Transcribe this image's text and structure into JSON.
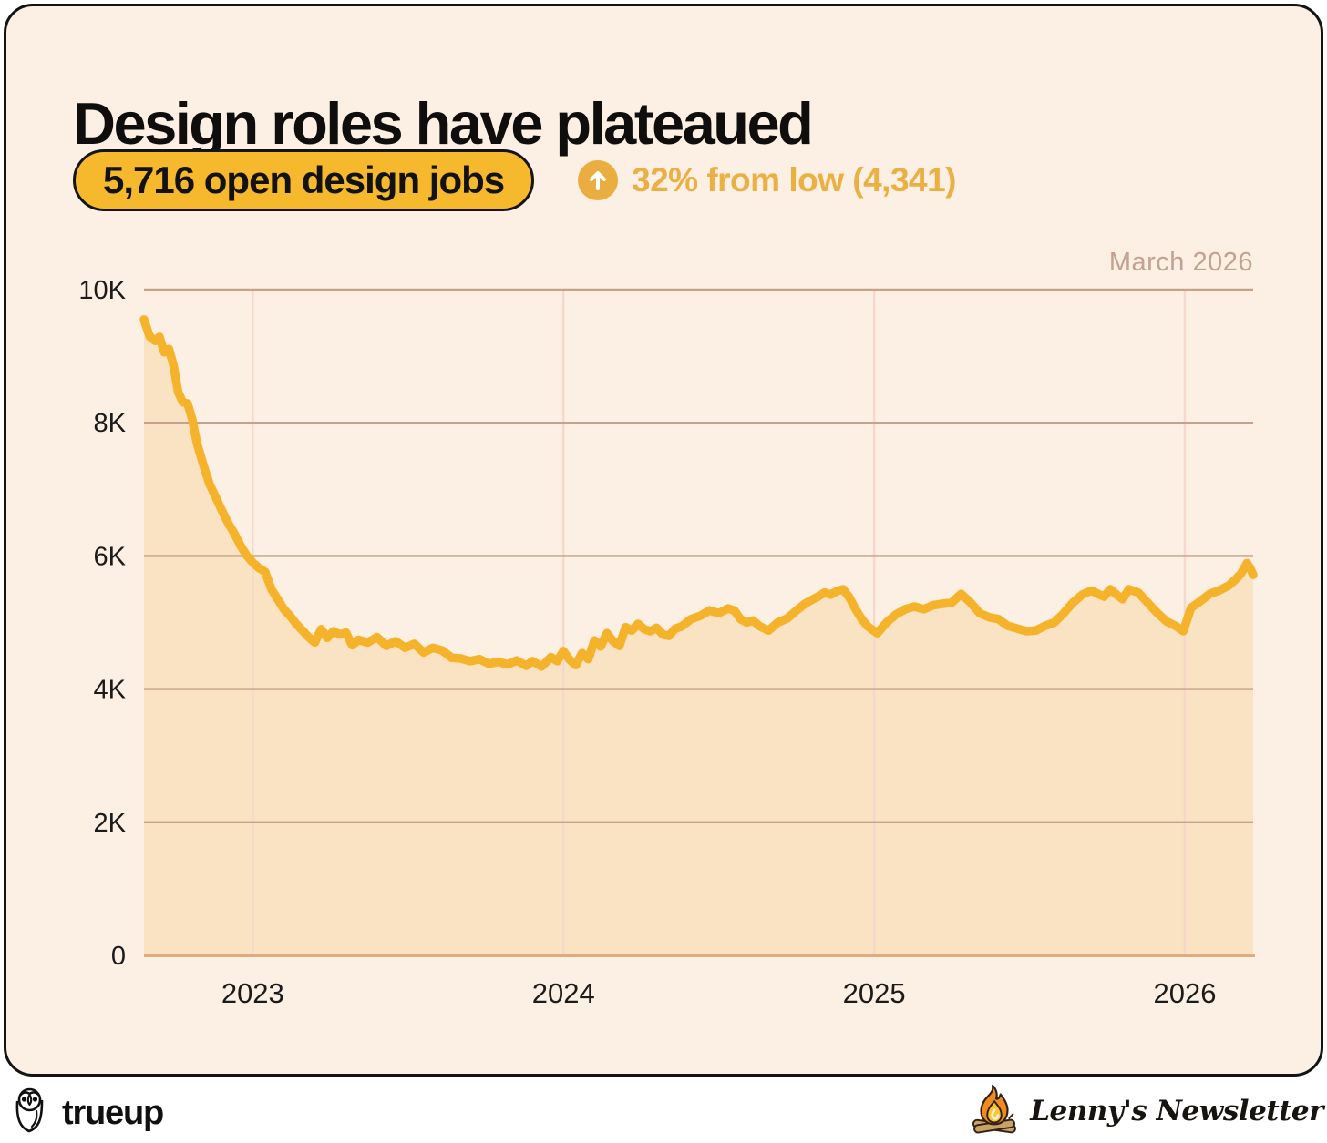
{
  "card": {
    "title": "Design roles have plateaued",
    "badge_label": "5,716 open design jobs",
    "delta_text": "32% from low (4,341)"
  },
  "colors": {
    "card_bg": "#FCEFE3",
    "accent_yellow": "#F4B32B",
    "badge_yellow": "#F6B92D",
    "delta_gold": "#EBB044",
    "area_fill": "#FAE3C2",
    "grid_horizontal": "#C4A28B",
    "grid_vertical": "#F7D7CB",
    "baseline": "#DFAC80",
    "annotation_text": "#C2A290",
    "text_dark": "#121212"
  },
  "chart_data": {
    "type": "area",
    "title": "Design roles have plateaued",
    "ylabel": "Open design jobs",
    "xlabel": "",
    "annotation": "March 2026",
    "latest_value": 5716,
    "low_value": 4341,
    "pct_from_low": "32%",
    "x_range": [
      2022.65,
      2026.22
    ],
    "y_range": [
      0,
      10000
    ],
    "grid": true,
    "legend": "none",
    "y_ticks": [
      {
        "label": "0",
        "value": 0
      },
      {
        "label": "2K",
        "value": 2000
      },
      {
        "label": "4K",
        "value": 4000
      },
      {
        "label": "6K",
        "value": 6000
      },
      {
        "label": "8K",
        "value": 8000
      },
      {
        "label": "10K",
        "value": 10000
      }
    ],
    "x_ticks": [
      {
        "label": "2023",
        "value": 2023
      },
      {
        "label": "2024",
        "value": 2024
      },
      {
        "label": "2025",
        "value": 2025
      },
      {
        "label": "2026",
        "value": 2026
      }
    ],
    "series": [
      {
        "name": "Open design jobs",
        "points": [
          [
            2022.65,
            9550
          ],
          [
            2022.668,
            9300
          ],
          [
            2022.686,
            9230
          ],
          [
            2022.7,
            9290
          ],
          [
            2022.715,
            9060
          ],
          [
            2022.73,
            9110
          ],
          [
            2022.745,
            8860
          ],
          [
            2022.76,
            8460
          ],
          [
            2022.775,
            8310
          ],
          [
            2022.79,
            8290
          ],
          [
            2022.805,
            8060
          ],
          [
            2022.82,
            7700
          ],
          [
            2022.84,
            7380
          ],
          [
            2022.86,
            7090
          ],
          [
            2022.88,
            6890
          ],
          [
            2022.9,
            6690
          ],
          [
            2022.92,
            6500
          ],
          [
            2022.94,
            6340
          ],
          [
            2022.96,
            6160
          ],
          [
            2022.98,
            6010
          ],
          [
            2023.0,
            5900
          ],
          [
            2023.02,
            5820
          ],
          [
            2023.04,
            5760
          ],
          [
            2023.06,
            5500
          ],
          [
            2023.08,
            5350
          ],
          [
            2023.1,
            5200
          ],
          [
            2023.12,
            5100
          ],
          [
            2023.14,
            4980
          ],
          [
            2023.16,
            4880
          ],
          [
            2023.18,
            4780
          ],
          [
            2023.2,
            4700
          ],
          [
            2023.22,
            4900
          ],
          [
            2023.24,
            4770
          ],
          [
            2023.26,
            4870
          ],
          [
            2023.28,
            4820
          ],
          [
            2023.3,
            4850
          ],
          [
            2023.32,
            4660
          ],
          [
            2023.34,
            4740
          ],
          [
            2023.37,
            4700
          ],
          [
            2023.4,
            4780
          ],
          [
            2023.43,
            4650
          ],
          [
            2023.46,
            4720
          ],
          [
            2023.49,
            4620
          ],
          [
            2023.52,
            4680
          ],
          [
            2023.55,
            4550
          ],
          [
            2023.58,
            4620
          ],
          [
            2023.61,
            4580
          ],
          [
            2023.64,
            4470
          ],
          [
            2023.67,
            4460
          ],
          [
            2023.7,
            4420
          ],
          [
            2023.73,
            4450
          ],
          [
            2023.76,
            4380
          ],
          [
            2023.79,
            4410
          ],
          [
            2023.82,
            4370
          ],
          [
            2023.85,
            4430
          ],
          [
            2023.88,
            4350
          ],
          [
            2023.9,
            4420
          ],
          [
            2023.93,
            4341
          ],
          [
            2023.96,
            4480
          ],
          [
            2023.98,
            4420
          ],
          [
            2024.0,
            4570
          ],
          [
            2024.02,
            4440
          ],
          [
            2024.04,
            4360
          ],
          [
            2024.06,
            4540
          ],
          [
            2024.08,
            4450
          ],
          [
            2024.1,
            4730
          ],
          [
            2024.12,
            4640
          ],
          [
            2024.14,
            4840
          ],
          [
            2024.16,
            4720
          ],
          [
            2024.18,
            4650
          ],
          [
            2024.2,
            4930
          ],
          [
            2024.22,
            4880
          ],
          [
            2024.24,
            4980
          ],
          [
            2024.26,
            4900
          ],
          [
            2024.28,
            4870
          ],
          [
            2024.3,
            4920
          ],
          [
            2024.32,
            4820
          ],
          [
            2024.34,
            4800
          ],
          [
            2024.36,
            4910
          ],
          [
            2024.38,
            4940
          ],
          [
            2024.41,
            5050
          ],
          [
            2024.44,
            5100
          ],
          [
            2024.47,
            5180
          ],
          [
            2024.5,
            5140
          ],
          [
            2024.53,
            5210
          ],
          [
            2024.55,
            5180
          ],
          [
            2024.57,
            5050
          ],
          [
            2024.59,
            5000
          ],
          [
            2024.61,
            5030
          ],
          [
            2024.63,
            4950
          ],
          [
            2024.66,
            4880
          ],
          [
            2024.69,
            5000
          ],
          [
            2024.72,
            5060
          ],
          [
            2024.75,
            5180
          ],
          [
            2024.78,
            5290
          ],
          [
            2024.8,
            5340
          ],
          [
            2024.82,
            5390
          ],
          [
            2024.84,
            5450
          ],
          [
            2024.86,
            5420
          ],
          [
            2024.88,
            5470
          ],
          [
            2024.9,
            5500
          ],
          [
            2024.92,
            5380
          ],
          [
            2024.94,
            5200
          ],
          [
            2024.96,
            5050
          ],
          [
            2024.98,
            4940
          ],
          [
            2025.01,
            4840
          ],
          [
            2025.04,
            5000
          ],
          [
            2025.07,
            5120
          ],
          [
            2025.1,
            5200
          ],
          [
            2025.13,
            5240
          ],
          [
            2025.16,
            5200
          ],
          [
            2025.19,
            5260
          ],
          [
            2025.22,
            5280
          ],
          [
            2025.25,
            5300
          ],
          [
            2025.28,
            5430
          ],
          [
            2025.31,
            5300
          ],
          [
            2025.34,
            5140
          ],
          [
            2025.37,
            5080
          ],
          [
            2025.4,
            5050
          ],
          [
            2025.43,
            4950
          ],
          [
            2025.46,
            4910
          ],
          [
            2025.49,
            4870
          ],
          [
            2025.52,
            4880
          ],
          [
            2025.55,
            4950
          ],
          [
            2025.58,
            5000
          ],
          [
            2025.61,
            5140
          ],
          [
            2025.64,
            5300
          ],
          [
            2025.67,
            5420
          ],
          [
            2025.7,
            5480
          ],
          [
            2025.72,
            5430
          ],
          [
            2025.74,
            5390
          ],
          [
            2025.76,
            5500
          ],
          [
            2025.78,
            5420
          ],
          [
            2025.8,
            5350
          ],
          [
            2025.82,
            5500
          ],
          [
            2025.85,
            5450
          ],
          [
            2025.88,
            5300
          ],
          [
            2025.91,
            5150
          ],
          [
            2025.94,
            5020
          ],
          [
            2025.97,
            4950
          ],
          [
            2025.995,
            4870
          ],
          [
            2026.02,
            5220
          ],
          [
            2026.05,
            5320
          ],
          [
            2026.08,
            5430
          ],
          [
            2026.11,
            5480
          ],
          [
            2026.14,
            5550
          ],
          [
            2026.16,
            5630
          ],
          [
            2026.18,
            5730
          ],
          [
            2026.2,
            5890
          ],
          [
            2026.21,
            5820
          ],
          [
            2026.22,
            5716
          ]
        ]
      }
    ]
  },
  "footer": {
    "trueup_label": "trueup",
    "lennys_label": "Lenny's Newsletter"
  }
}
